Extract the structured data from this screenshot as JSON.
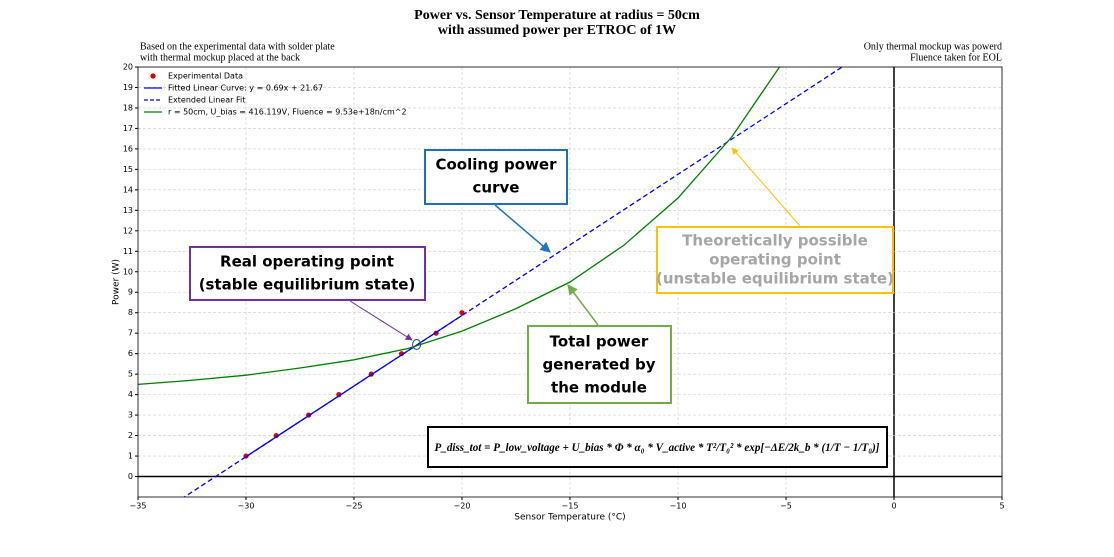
{
  "chart_data": {
    "type": "line",
    "title": [
      "Power vs. Sensor Temperature at radius = 50cm",
      "with assumed power per ETROC of 1W"
    ],
    "note_left": [
      "Based on the experimental data with solder plate",
      "with thermal mockup placed at the back"
    ],
    "note_right": [
      "Only thermal mockup was powerd",
      "Fluence taken for EOL"
    ],
    "xlabel": "Sensor Temperature (°C)",
    "ylabel": "Power (W)",
    "xlim": [
      -35,
      5
    ],
    "ylim": [
      -1,
      20
    ],
    "xticks": [
      {
        "value": -35,
        "label": "−35"
      },
      {
        "value": -30,
        "label": "−30"
      },
      {
        "value": -25,
        "label": "−25"
      },
      {
        "value": -20,
        "label": "−20"
      },
      {
        "value": -15,
        "label": "−15"
      },
      {
        "value": -10,
        "label": "−10"
      },
      {
        "value": -5,
        "label": "−5"
      },
      0,
      5
    ],
    "yticks": [
      0,
      1,
      2,
      3,
      4,
      5,
      6,
      7,
      8,
      9,
      10,
      11,
      12,
      13,
      14,
      15,
      16,
      17,
      18,
      19,
      20
    ],
    "grid": true,
    "legend": "upper left",
    "series": [
      {
        "name": "Experimental Data",
        "color": "#e00000",
        "style": "scatter",
        "x": [
          -30,
          -28.6,
          -27.1,
          -25.7,
          -24.2,
          -22.8,
          -21.2,
          -20
        ],
        "values": [
          1,
          2,
          3,
          4,
          5,
          6,
          7,
          8
        ]
      },
      {
        "name": "Fitted Linear Curve: y = 0.69x + 21.67",
        "color": "#0000ff",
        "style": "solid",
        "x": [
          -30,
          -20
        ],
        "values": [
          0.97,
          7.87
        ]
      },
      {
        "name": "Extended Linear Fit",
        "color": "#0000ff",
        "style": "dashed",
        "x": [
          -33,
          -2.4
        ],
        "values": [
          -1.1,
          20
        ]
      },
      {
        "name": "r = 50cm, U_bias = 416.119V, Fluence = 9.53e+18n/cm^2",
        "color": "#008000",
        "style": "solid",
        "x": [
          -35,
          -32.5,
          -30,
          -27.5,
          -25,
          -22.5,
          -20,
          -17.5,
          -15,
          -12.5,
          -10,
          -7.5,
          -5.3
        ],
        "values": [
          4.5,
          4.7,
          4.95,
          5.3,
          5.7,
          6.25,
          7.1,
          8.2,
          9.5,
          11.3,
          13.6,
          16.6,
          20
        ]
      }
    ],
    "operating_point": {
      "x": -22.1,
      "y": 6.45
    },
    "annotations": {
      "cooling": [
        "Cooling power",
        "curve"
      ],
      "real": [
        "Real operating point",
        "(stable equilibrium state)"
      ],
      "theoretical": [
        "Theoretically possible",
        "operating point",
        "(unstable equilibrium state)"
      ],
      "total": [
        "Total power",
        "generated by",
        "the module"
      ],
      "equation": "P_diss_tot = P_low_voltage + U_bias * Φ * α₀ * V_active * T²/T₀² * exp[−ΔE/2k_b * (1/T − 1/T₀)]"
    }
  }
}
